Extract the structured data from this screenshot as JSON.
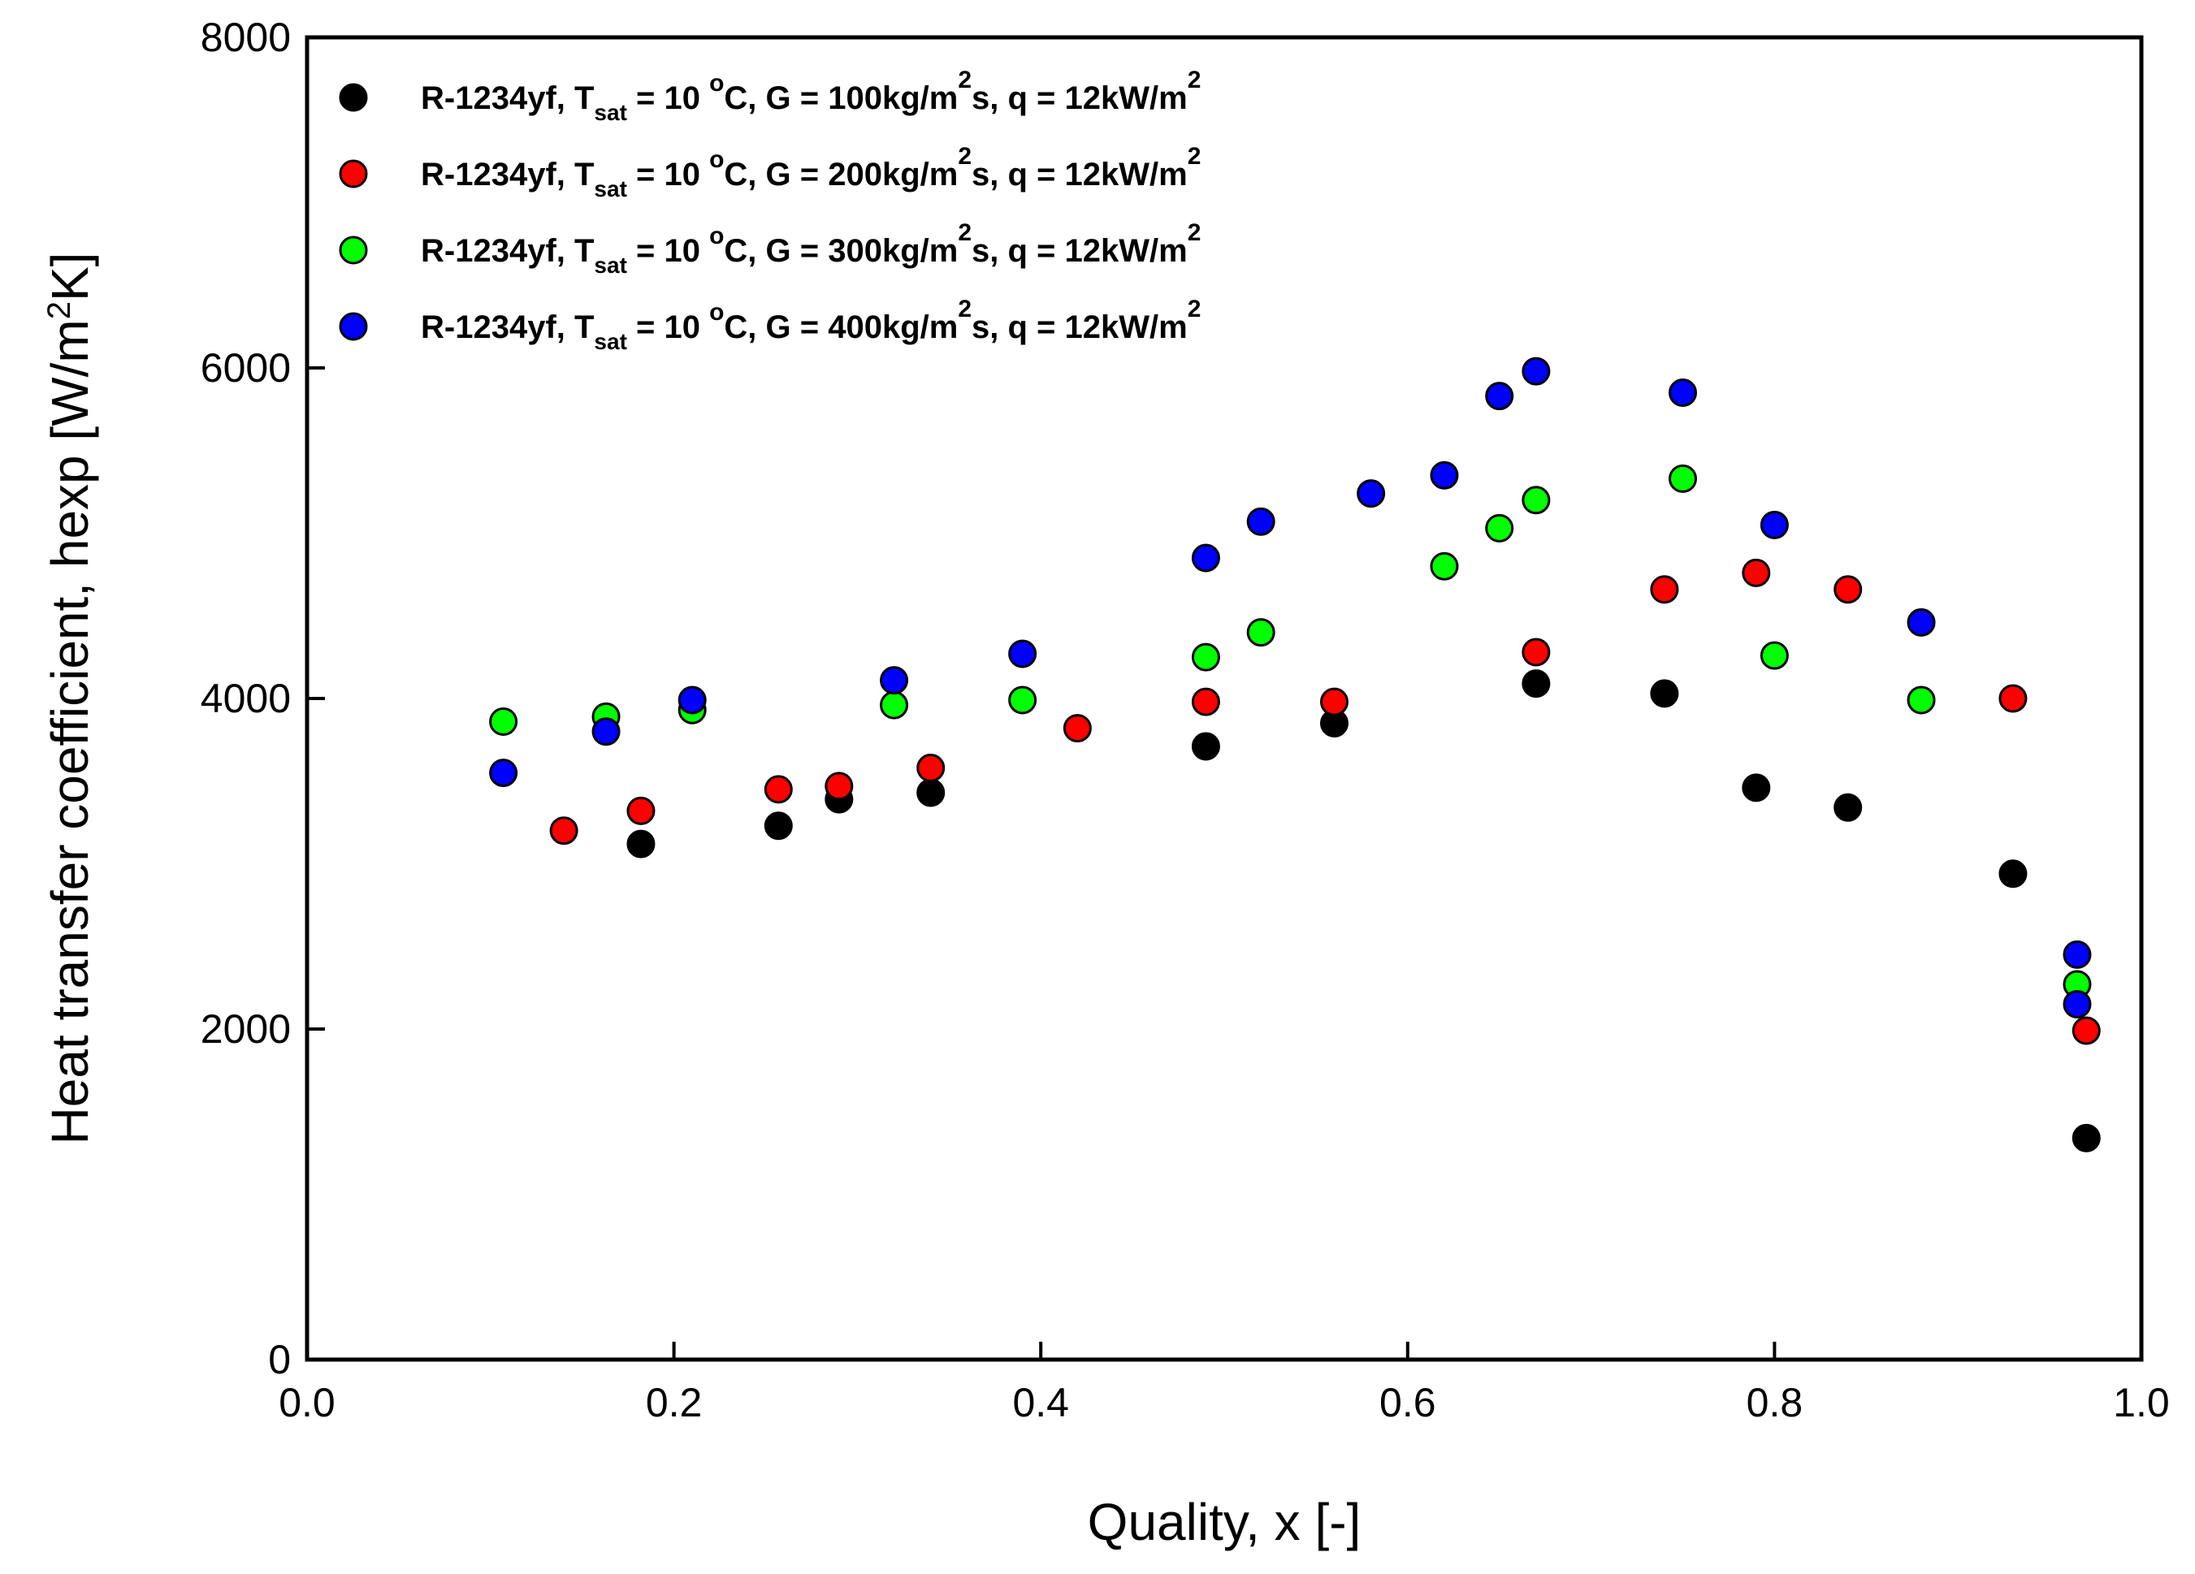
{
  "chart_data": {
    "type": "scatter",
    "title": "",
    "xlabel": "Quality, x [-]",
    "ylabel": {
      "prefix": "Heat transfer coefficient, h",
      "sub": "exp",
      "unit_start": " [W/m",
      "unit_sup": "2",
      "unit_end": "K]"
    },
    "xlim": [
      0.0,
      1.0
    ],
    "ylim": [
      0,
      8000
    ],
    "xticks": [
      0.0,
      0.2,
      0.4,
      0.6,
      0.8,
      1.0
    ],
    "xtick_labels": [
      "0.0",
      "0.2",
      "0.4",
      "0.6",
      "0.8",
      "1.0"
    ],
    "yticks": [
      0,
      2000,
      4000,
      6000,
      8000
    ],
    "ytick_labels": [
      "0",
      "2000",
      "4000",
      "6000",
      "8000"
    ],
    "grid": false,
    "legend_position": "top-left",
    "series": [
      {
        "name": "R-1234yf, Tsat = 10 °C, G = 100kg/m2s, q = 12kW/m2",
        "label": {
          "p1": "R-1234yf, T",
          "sub": "sat",
          "p2": " = 10 ",
          "deg": "o",
          "p3": "C, G = 100kg/m",
          "sup1": "2",
          "p4": "s, q = 12kW/m",
          "sup2": "2"
        },
        "color": "#000000",
        "x": [
          0.182,
          0.257,
          0.29,
          0.34,
          0.49,
          0.56,
          0.67,
          0.74,
          0.79,
          0.84,
          0.93,
          0.97
        ],
        "y": [
          3120,
          3230,
          3390,
          3430,
          3710,
          3850,
          4090,
          4030,
          3460,
          3340,
          2940,
          1340
        ]
      },
      {
        "name": "R-1234yf, Tsat = 10 °C, G = 200kg/m2s, q = 12kW/m2",
        "label": {
          "p1": "R-1234yf, T",
          "sub": "sat",
          "p2": " = 10 ",
          "deg": "o",
          "p3": "C, G = 200kg/m",
          "sup1": "2",
          "p4": "s, q = 12kW/m",
          "sup2": "2"
        },
        "color": "#ff0000",
        "x": [
          0.14,
          0.182,
          0.257,
          0.29,
          0.34,
          0.42,
          0.49,
          0.56,
          0.67,
          0.74,
          0.79,
          0.84,
          0.93,
          0.97
        ],
        "y": [
          3200,
          3320,
          3450,
          3470,
          3580,
          3820,
          3980,
          3980,
          4280,
          4660,
          4760,
          4660,
          4000,
          1990
        ]
      },
      {
        "name": "R-1234yf, Tsat = 10 °C, G = 300kg/m2s, q = 12kW/m2",
        "label": {
          "p1": "R-1234yf, T",
          "sub": "sat",
          "p2": " = 10 ",
          "deg": "o",
          "p3": "C, G = 300kg/m",
          "sup1": "2",
          "p4": "s, q = 12kW/m",
          "sup2": "2"
        },
        "color": "#00ff00",
        "x": [
          0.107,
          0.163,
          0.21,
          0.32,
          0.39,
          0.49,
          0.52,
          0.62,
          0.65,
          0.67,
          0.75,
          0.8,
          0.88,
          0.965
        ],
        "y": [
          3860,
          3890,
          3930,
          3960,
          3990,
          4250,
          4400,
          4800,
          5030,
          5200,
          5330,
          4260,
          3990,
          2270
        ]
      },
      {
        "name": "R-1234yf, Tsat = 10 °C, G = 400kg/m2s, q = 12kW/m2",
        "label": {
          "p1": "R-1234yf, T",
          "sub": "sat",
          "p2": " = 10 ",
          "deg": "o",
          "p3": "C, G = 400kg/m",
          "sup1": "2",
          "p4": "s, q = 12kW/m",
          "sup2": "2"
        },
        "color": "#0000ff",
        "x": [
          0.107,
          0.163,
          0.21,
          0.32,
          0.39,
          0.49,
          0.52,
          0.58,
          0.62,
          0.65,
          0.67,
          0.75,
          0.8,
          0.88,
          0.965,
          0.965
        ],
        "y": [
          3550,
          3800,
          3990,
          4110,
          4270,
          4850,
          5070,
          5240,
          5350,
          5830,
          5980,
          5850,
          5050,
          4460,
          2450,
          2150
        ]
      }
    ]
  }
}
